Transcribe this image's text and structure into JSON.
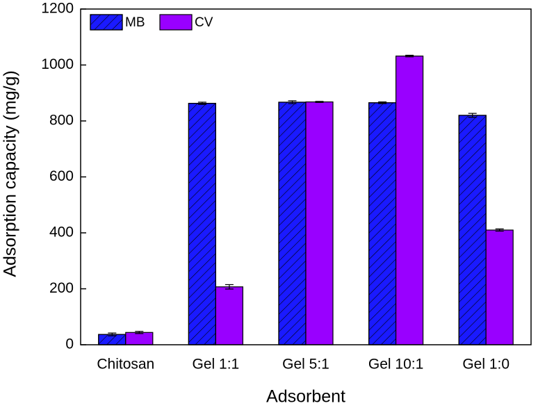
{
  "chart_data": {
    "type": "bar",
    "x_label": "Adsorbent",
    "y_label": "Adsorption capacity (mg/g)",
    "categories": [
      "Chitosan",
      "Gel 1:1",
      "Gel 5:1",
      "Gel 10:1",
      "Gel 1:0"
    ],
    "series": [
      {
        "name": "MB",
        "color": "#1a1aff",
        "hatch": true,
        "values": [
          37,
          863,
          867,
          865,
          820
        ],
        "errors": [
          5,
          4,
          5,
          3,
          7
        ]
      },
      {
        "name": "CV",
        "color": "#9900ff",
        "hatch": false,
        "values": [
          44,
          207,
          868,
          1032,
          410
        ],
        "errors": [
          4,
          8,
          2,
          3,
          4
        ]
      }
    ],
    "ylim": [
      0,
      1200
    ],
    "yticks": [
      0,
      200,
      400,
      600,
      800,
      1000,
      1200
    ],
    "legend": "top-left"
  }
}
